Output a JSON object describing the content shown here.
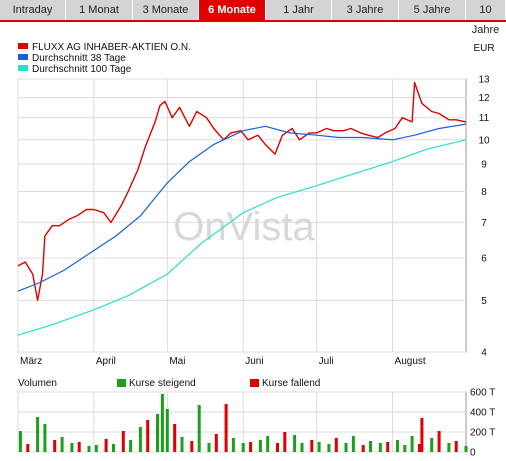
{
  "tabs": [
    {
      "label": "Intraday",
      "active": false
    },
    {
      "label": "1 Monat",
      "active": false
    },
    {
      "label": "3 Monate",
      "active": false
    },
    {
      "label": "6 Monate",
      "active": true
    },
    {
      "label": "1 Jahr",
      "active": false
    },
    {
      "label": "3 Jahre",
      "active": false
    },
    {
      "label": "5 Jahre",
      "active": false
    },
    {
      "label": "10 Jahre",
      "active": false
    }
  ],
  "watermark": "OnVista",
  "colors": {
    "price": "#e00000",
    "avg38": "#1a5fd6",
    "avg100": "#28e0c8",
    "volume_up": "#1aa01a",
    "volume_down": "#e00000",
    "accent": "#e00000"
  },
  "chart_data": [
    {
      "type": "line",
      "currency": "EUR",
      "legend": [
        {
          "name": "FLUXX AG INHABER-AKTIEN O.N.",
          "color": "#e00000"
        },
        {
          "name": "Durchschnitt 38 Tage",
          "color": "#1a5fd6"
        },
        {
          "name": "Durchschnitt 100 Tage",
          "color": "#28e0c8"
        }
      ],
      "y_scale": "log",
      "y_ticks": [
        4,
        5,
        6,
        7,
        8,
        9,
        10,
        11,
        12,
        13
      ],
      "x_range": [
        "2010-03-01",
        "2010-08-31"
      ],
      "x_ticks": [
        {
          "label": "März",
          "date": "2010-03-01"
        },
        {
          "label": "April",
          "date": "2010-04-01"
        },
        {
          "label": "Mai",
          "date": "2010-05-01"
        },
        {
          "label": "Juni",
          "date": "2010-06-01"
        },
        {
          "label": "Juli",
          "date": "2010-07-01"
        },
        {
          "label": "August",
          "date": "2010-08-01"
        }
      ],
      "grid": true,
      "series": [
        {
          "name": "FLUXX AG INHABER-AKTIEN O.N.",
          "x": [
            "2010-03-01",
            "2010-03-04",
            "2010-03-07",
            "2010-03-09",
            "2010-03-11",
            "2010-03-12",
            "2010-03-15",
            "2010-03-18",
            "2010-03-22",
            "2010-03-25",
            "2010-03-29",
            "2010-04-01",
            "2010-04-05",
            "2010-04-08",
            "2010-04-12",
            "2010-04-15",
            "2010-04-19",
            "2010-04-22",
            "2010-04-26",
            "2010-04-28",
            "2010-04-30",
            "2010-05-03",
            "2010-05-06",
            "2010-05-10",
            "2010-05-13",
            "2010-05-17",
            "2010-05-20",
            "2010-05-24",
            "2010-05-27",
            "2010-05-31",
            "2010-06-03",
            "2010-06-07",
            "2010-06-10",
            "2010-06-14",
            "2010-06-17",
            "2010-06-21",
            "2010-06-24",
            "2010-06-28",
            "2010-07-01",
            "2010-07-05",
            "2010-07-08",
            "2010-07-12",
            "2010-07-15",
            "2010-07-19",
            "2010-07-22",
            "2010-07-26",
            "2010-07-29",
            "2010-08-02",
            "2010-08-05",
            "2010-08-09",
            "2010-08-10",
            "2010-08-13",
            "2010-08-17",
            "2010-08-20",
            "2010-08-24",
            "2010-08-27",
            "2010-08-31"
          ],
          "values": [
            5.8,
            5.9,
            5.6,
            5.0,
            5.6,
            6.6,
            6.9,
            6.9,
            7.1,
            7.2,
            7.4,
            7.4,
            7.3,
            7.0,
            7.5,
            8.0,
            8.8,
            9.7,
            10.8,
            11.6,
            11.8,
            11.0,
            11.5,
            10.6,
            11.3,
            11.0,
            10.5,
            10.0,
            10.3,
            10.4,
            10.0,
            10.2,
            9.8,
            9.4,
            10.2,
            10.5,
            10.0,
            10.3,
            10.3,
            10.5,
            10.4,
            10.4,
            10.5,
            10.3,
            10.2,
            10.1,
            10.3,
            10.5,
            11.0,
            10.8,
            12.8,
            11.7,
            11.3,
            11.2,
            10.9,
            10.9,
            10.8
          ]
        },
        {
          "name": "Durchschnitt 38 Tage",
          "x": [
            "2010-03-01",
            "2010-03-10",
            "2010-03-20",
            "2010-04-01",
            "2010-04-10",
            "2010-04-20",
            "2010-05-01",
            "2010-05-10",
            "2010-05-20",
            "2010-06-01",
            "2010-06-10",
            "2010-06-20",
            "2010-07-01",
            "2010-07-10",
            "2010-07-20",
            "2010-08-01",
            "2010-08-10",
            "2010-08-20",
            "2010-08-31"
          ],
          "values": [
            5.2,
            5.4,
            5.7,
            6.2,
            6.6,
            7.2,
            8.3,
            9.1,
            9.8,
            10.4,
            10.6,
            10.3,
            10.2,
            10.1,
            10.1,
            10.0,
            10.2,
            10.5,
            10.7
          ]
        },
        {
          "name": "Durchschnitt 100 Tage",
          "x": [
            "2010-03-01",
            "2010-03-15",
            "2010-04-01",
            "2010-04-15",
            "2010-05-01",
            "2010-05-15",
            "2010-06-01",
            "2010-06-15",
            "2010-07-01",
            "2010-07-15",
            "2010-08-01",
            "2010-08-15",
            "2010-08-31"
          ],
          "values": [
            4.3,
            4.5,
            4.8,
            5.1,
            5.6,
            6.4,
            7.3,
            7.8,
            8.2,
            8.6,
            9.1,
            9.6,
            10.0
          ]
        }
      ]
    },
    {
      "type": "bar",
      "title": "Volumen",
      "legend": [
        {
          "name": "Kurse steigend",
          "color": "#1aa01a"
        },
        {
          "name": "Kurse fallend",
          "color": "#e00000"
        }
      ],
      "y_ticks": [
        "0",
        "200 T",
        "400 T",
        "600 T"
      ],
      "y_max": 600000,
      "grid": true,
      "direction_order": [
        "up",
        "down"
      ],
      "dates": [
        "2010-03-02",
        "2010-03-05",
        "2010-03-09",
        "2010-03-12",
        "2010-03-16",
        "2010-03-19",
        "2010-03-23",
        "2010-03-26",
        "2010-03-30",
        "2010-04-02",
        "2010-04-06",
        "2010-04-09",
        "2010-04-13",
        "2010-04-16",
        "2010-04-20",
        "2010-04-23",
        "2010-04-27",
        "2010-04-29",
        "2010-05-01",
        "2010-05-04",
        "2010-05-07",
        "2010-05-11",
        "2010-05-14",
        "2010-05-18",
        "2010-05-21",
        "2010-05-25",
        "2010-05-28",
        "2010-06-01",
        "2010-06-04",
        "2010-06-08",
        "2010-06-11",
        "2010-06-15",
        "2010-06-18",
        "2010-06-22",
        "2010-06-25",
        "2010-06-29",
        "2010-07-02",
        "2010-07-06",
        "2010-07-09",
        "2010-07-13",
        "2010-07-16",
        "2010-07-20",
        "2010-07-23",
        "2010-07-27",
        "2010-07-30",
        "2010-08-03",
        "2010-08-06",
        "2010-08-09",
        "2010-08-12",
        "2010-08-13",
        "2010-08-17",
        "2010-08-20",
        "2010-08-24",
        "2010-08-27",
        "2010-08-31"
      ],
      "values": [
        210000,
        80000,
        350000,
        280000,
        120000,
        150000,
        90000,
        100000,
        60000,
        70000,
        130000,
        80000,
        210000,
        120000,
        250000,
        320000,
        380000,
        580000,
        430000,
        280000,
        150000,
        110000,
        470000,
        90000,
        180000,
        480000,
        140000,
        90000,
        100000,
        120000,
        160000,
        90000,
        200000,
        170000,
        90000,
        120000,
        100000,
        80000,
        140000,
        90000,
        160000,
        70000,
        110000,
        90000,
        100000,
        120000,
        70000,
        160000,
        80000,
        340000,
        140000,
        210000,
        90000,
        110000,
        60000
      ],
      "directions": [
        0,
        1,
        0,
        0,
        1,
        0,
        0,
        1,
        0,
        0,
        1,
        0,
        1,
        0,
        0,
        1,
        0,
        0,
        0,
        1,
        0,
        1,
        0,
        0,
        1,
        1,
        0,
        0,
        1,
        0,
        0,
        1,
        1,
        0,
        0,
        1,
        0,
        0,
        1,
        0,
        0,
        1,
        0,
        0,
        1,
        0,
        0,
        0,
        1,
        1,
        0,
        1,
        0,
        1,
        0
      ]
    }
  ]
}
